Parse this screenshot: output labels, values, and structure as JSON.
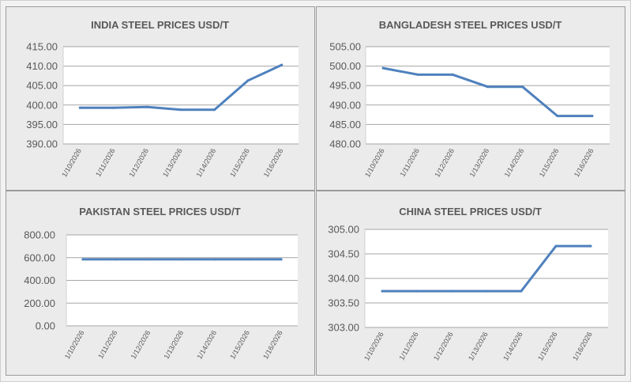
{
  "chart_data": [
    {
      "type": "line",
      "title": "INDIA STEEL PRICES USD/T",
      "categories": [
        "1/10/2026",
        "1/11/2026",
        "1/12/2026",
        "1/13/2026",
        "1/14/2026",
        "1/15/2026",
        "1/16/2026"
      ],
      "values": [
        399.3,
        399.3,
        399.5,
        398.8,
        398.8,
        406.3,
        410.3
      ],
      "ylim": [
        390,
        415
      ],
      "yticks": [
        "390.00",
        "395.00",
        "400.00",
        "405.00",
        "410.00",
        "415.00"
      ],
      "grid": true,
      "color": "#4f81bd"
    },
    {
      "type": "line",
      "title": "BANGLADESH STEEL PRICES USD/T",
      "categories": [
        "1/10/2026",
        "1/11/2026",
        "1/12/2026",
        "1/13/2026",
        "1/14/2026",
        "1/15/2026",
        "1/16/2026"
      ],
      "values": [
        499.5,
        497.8,
        497.8,
        494.7,
        494.7,
        487.2,
        487.2
      ],
      "ylim": [
        480,
        505
      ],
      "yticks": [
        "480.00",
        "485.00",
        "490.00",
        "495.00",
        "500.00",
        "505.00"
      ],
      "grid": true,
      "color": "#4f81bd"
    },
    {
      "type": "line",
      "title": "PAKISTAN STEEL PRICES USD/T",
      "categories": [
        "1/10/2026",
        "1/11/2026",
        "1/12/2026",
        "1/13/2026",
        "1/14/2026",
        "1/15/2026",
        "1/16/2026"
      ],
      "values": [
        585,
        585,
        585,
        585,
        585,
        585,
        585
      ],
      "ylim": [
        0,
        800
      ],
      "yticks": [
        "0.00",
        "200.00",
        "400.00",
        "600.00",
        "800.00"
      ],
      "grid": true,
      "color": "#4f81bd"
    },
    {
      "type": "line",
      "title": "CHINA STEEL PRICES USD/T",
      "categories": [
        "1/10/2026",
        "1/11/2026",
        "1/12/2026",
        "1/13/2026",
        "1/14/2026",
        "1/15/2026",
        "1/16/2026"
      ],
      "values": [
        303.74,
        303.74,
        303.74,
        303.74,
        303.74,
        304.66,
        304.66
      ],
      "ylim": [
        303,
        305
      ],
      "yticks": [
        "303.00",
        "303.50",
        "304.00",
        "304.50",
        "305.00"
      ],
      "grid": true,
      "color": "#4f81bd"
    }
  ]
}
